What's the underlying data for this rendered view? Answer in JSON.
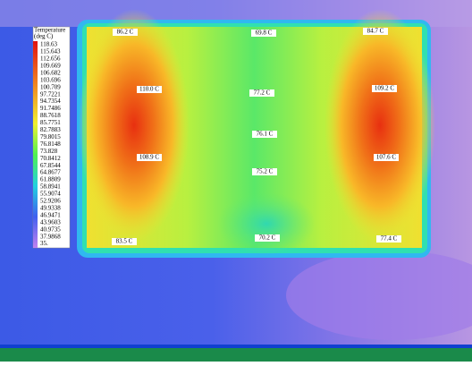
{
  "legend": {
    "title": "Temperature",
    "unit": "(deg C)",
    "values": [
      "118.63",
      "115.643",
      "112.656",
      "109.669",
      "106.682",
      "103.696",
      "100.709",
      "97.7221",
      "94.7354",
      "91.7486",
      "88.7618",
      "85.7751",
      "82.7883",
      "79.8015",
      "76.8148",
      "73.828",
      "70.8412",
      "67.8544",
      "64.8677",
      "61.8809",
      "58.8941",
      "55.9074",
      "52.9206",
      "49.9338",
      "46.9471",
      "43.9603",
      "40.9735",
      "37.9868",
      "35."
    ]
  },
  "probes": [
    "86.2 C",
    "69.8 C",
    "84.7 C",
    "110.0 C",
    "77.2 C",
    "109.2 C",
    "76.1 C",
    "108.9 C",
    "75.2 C",
    "107.6 C",
    "83.5 C",
    "70.2 C",
    "77.4 C"
  ]
}
